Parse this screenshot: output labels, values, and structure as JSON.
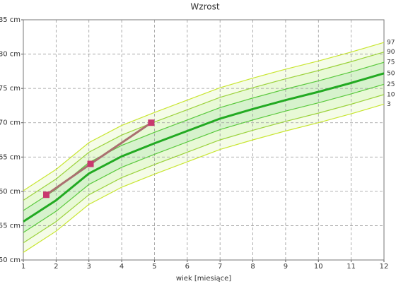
{
  "chart_data": {
    "type": "line",
    "title": "Wzrost",
    "x_label": "wiek [miesiące]",
    "x": [
      1,
      2,
      3,
      4,
      5,
      6,
      7,
      8,
      9,
      10,
      11,
      12
    ],
    "xlim": [
      1,
      12
    ],
    "xticks": [
      1,
      2,
      3,
      4,
      5,
      6,
      7,
      8,
      9,
      10,
      11,
      12
    ],
    "ylim": [
      50,
      85
    ],
    "yticks": [
      {
        "value": 50,
        "label": "50 cm"
      },
      {
        "value": 55,
        "label": "55 cm"
      },
      {
        "value": 60,
        "label": "60 cm"
      },
      {
        "value": 65,
        "label": "65 cm"
      },
      {
        "value": 70,
        "label": "70 cm"
      },
      {
        "value": 75,
        "label": "75 cm"
      },
      {
        "value": 80,
        "label": "80 cm"
      },
      {
        "value": 85,
        "label": "85 cm"
      }
    ],
    "grid": true,
    "series": [
      {
        "name": "97",
        "color": "#c8e632",
        "values": [
          60.1,
          63.2,
          67.1,
          69.6,
          71.5,
          73.3,
          75.1,
          76.5,
          77.8,
          79.0,
          80.3,
          81.7
        ]
      },
      {
        "name": "90",
        "color": "#9bd23c",
        "values": [
          58.7,
          61.8,
          65.7,
          68.2,
          70.1,
          71.9,
          73.7,
          75.1,
          76.4,
          77.6,
          78.9,
          80.3
        ]
      },
      {
        "name": "75",
        "color": "#5ac83c",
        "values": [
          57.2,
          60.3,
          64.2,
          66.7,
          68.6,
          70.4,
          72.2,
          73.6,
          74.9,
          76.1,
          77.4,
          78.8
        ]
      },
      {
        "name": "50",
        "color": "#22aa22",
        "values": [
          55.6,
          58.7,
          62.6,
          65.1,
          67.0,
          68.8,
          70.6,
          72.0,
          73.3,
          74.5,
          75.8,
          77.2
        ]
      },
      {
        "name": "25",
        "color": "#5ac83c",
        "values": [
          54.0,
          57.1,
          61.0,
          63.5,
          65.4,
          67.2,
          69.0,
          70.4,
          71.7,
          72.9,
          74.2,
          75.6
        ]
      },
      {
        "name": "10",
        "color": "#9bd23c",
        "values": [
          52.5,
          55.6,
          59.5,
          62.0,
          63.9,
          65.7,
          67.5,
          68.9,
          70.2,
          71.4,
          72.7,
          74.1
        ]
      },
      {
        "name": "3",
        "color": "#c8e632",
        "values": [
          51.1,
          54.2,
          58.1,
          60.6,
          62.5,
          64.3,
          66.1,
          67.5,
          68.8,
          70.0,
          71.3,
          72.7
        ]
      }
    ],
    "bands": [
      {
        "color": "#f5fce8"
      },
      {
        "color": "#e8f9d6"
      },
      {
        "color": "#d6f2cc"
      }
    ],
    "measurements": {
      "color": "#c8396e",
      "x": [
        1.7,
        3.05,
        4.9
      ],
      "values": [
        59.5,
        64,
        70
      ]
    }
  }
}
